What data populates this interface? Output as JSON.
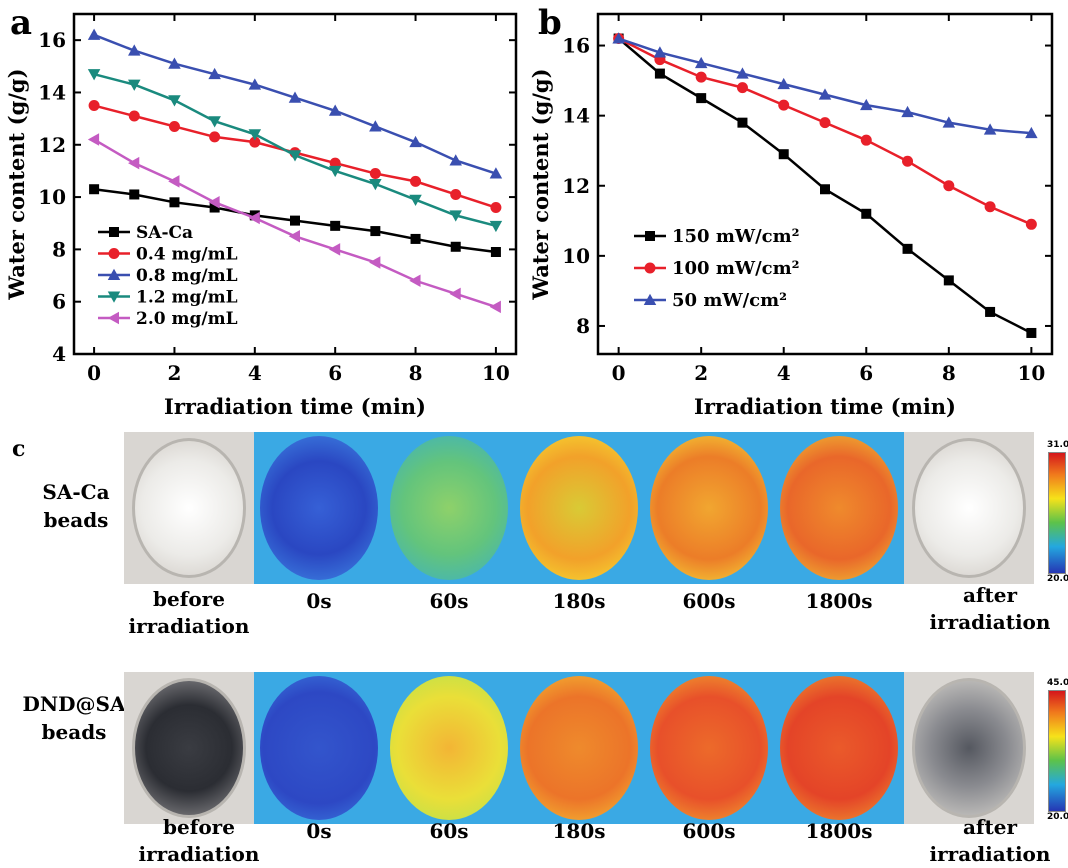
{
  "panels": {
    "a": "a",
    "b": "b",
    "c": "c"
  },
  "chart_data": [
    {
      "type": "line",
      "panel": "a",
      "xlabel": "Irradiation time (min)",
      "ylabel": "Water content (g/g)",
      "xlim": [
        -0.5,
        10.5
      ],
      "ylim": [
        4,
        17
      ],
      "xticks": [
        0,
        2,
        4,
        6,
        8,
        10
      ],
      "yticks": [
        4,
        6,
        8,
        10,
        12,
        14,
        16
      ],
      "legend_position": "bottom-left",
      "x": [
        0,
        1,
        2,
        3,
        4,
        5,
        6,
        7,
        8,
        9,
        10
      ],
      "series": [
        {
          "name": "SA-Ca",
          "color": "#000000",
          "marker": "square",
          "values": [
            10.3,
            10.1,
            9.8,
            9.6,
            9.3,
            9.1,
            8.9,
            8.7,
            8.4,
            8.1,
            7.9
          ]
        },
        {
          "name": "0.4 mg/mL",
          "color": "#e8202a",
          "marker": "circle",
          "values": [
            13.5,
            13.1,
            12.7,
            12.3,
            12.1,
            11.7,
            11.3,
            10.9,
            10.6,
            10.1,
            9.6
          ]
        },
        {
          "name": "0.8 mg/mL",
          "color": "#3a4fb0",
          "marker": "triangle-up",
          "values": [
            16.2,
            15.6,
            15.1,
            14.7,
            14.3,
            13.8,
            13.3,
            12.7,
            12.1,
            11.4,
            10.9
          ]
        },
        {
          "name": "1.2 mg/mL",
          "color": "#1a8a7e",
          "marker": "triangle-down",
          "values": [
            14.7,
            14.3,
            13.7,
            12.9,
            12.4,
            11.6,
            11.0,
            10.5,
            9.9,
            9.3,
            8.9
          ]
        },
        {
          "name": "2.0 mg/mL",
          "color": "#c45bc2",
          "marker": "triangle-left",
          "values": [
            12.2,
            11.3,
            10.6,
            9.8,
            9.2,
            8.5,
            8.0,
            7.5,
            6.8,
            6.3,
            5.8
          ]
        }
      ]
    },
    {
      "type": "line",
      "panel": "b",
      "xlabel": "Irradiation time (min)",
      "ylabel": "Water content (g/g)",
      "xlim": [
        -0.5,
        10.5
      ],
      "ylim": [
        7.2,
        16.9
      ],
      "xticks": [
        0,
        2,
        4,
        6,
        8,
        10
      ],
      "yticks": [
        8,
        10,
        12,
        14,
        16
      ],
      "legend_position": "center-left",
      "x": [
        0,
        1,
        2,
        3,
        4,
        5,
        6,
        7,
        8,
        9,
        10
      ],
      "series": [
        {
          "name": "150 mW/cm²",
          "color": "#000000",
          "marker": "square",
          "values": [
            16.2,
            15.2,
            14.5,
            13.8,
            12.9,
            11.9,
            11.2,
            10.2,
            9.3,
            8.4,
            7.8
          ]
        },
        {
          "name": "100 mW/cm²",
          "color": "#e8202a",
          "marker": "circle",
          "values": [
            16.2,
            15.6,
            15.1,
            14.8,
            14.3,
            13.8,
            13.3,
            12.7,
            12.0,
            11.4,
            10.9
          ]
        },
        {
          "name": "50 mW/cm²",
          "color": "#3a4fb0",
          "marker": "triangle-up",
          "values": [
            16.2,
            15.8,
            15.5,
            15.2,
            14.9,
            14.6,
            14.3,
            14.1,
            13.8,
            13.6,
            13.5
          ]
        }
      ]
    }
  ],
  "panel_c": {
    "rows": [
      {
        "label_line1": "SA-Ca",
        "label_line2": "beads",
        "colorbar_max": "31.0",
        "colorbar_min": "20.0",
        "columns": [
          {
            "label_line1": "before",
            "label_line2": "irradiation"
          },
          {
            "label_line1": "0s"
          },
          {
            "label_line1": "60s"
          },
          {
            "label_line1": "180s"
          },
          {
            "label_line1": "600s"
          },
          {
            "label_line1": "1800s"
          },
          {
            "label_line1": "after",
            "label_line2": "irradiation"
          }
        ]
      },
      {
        "label_line1": "DND@SA",
        "label_line2": "beads",
        "colorbar_max": "45.0",
        "colorbar_min": "20.0",
        "columns": [
          {
            "label_line1": "before",
            "label_line2": "irradiation"
          },
          {
            "label_line1": "0s"
          },
          {
            "label_line1": "60s"
          },
          {
            "label_line1": "180s"
          },
          {
            "label_line1": "600s"
          },
          {
            "label_line1": "1800s"
          },
          {
            "label_line1": "after",
            "label_line2": "irradiation"
          }
        ]
      }
    ]
  }
}
